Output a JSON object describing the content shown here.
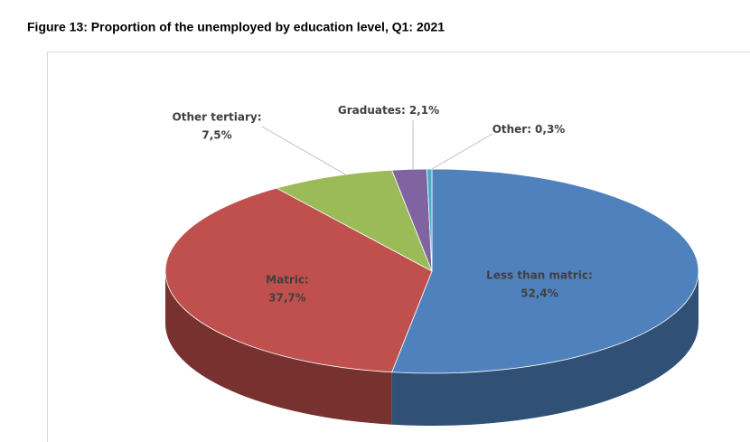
{
  "chart_data": {
    "type": "pie",
    "title": "Figure 13: Proportion of the unemployed by education level, Q1: 2021",
    "categories": [
      "Less than matric:",
      "Matric:",
      "Other tertiary:",
      "Graduates:",
      "Other:"
    ],
    "values": [
      52.4,
      37.7,
      7.5,
      2.1,
      0.3
    ],
    "value_labels": [
      "52,4%",
      "37,7%",
      "7,5%",
      "2,1%",
      "0,3%"
    ],
    "colors": [
      "#4f81bd",
      "#c0504d",
      "#9bbb59",
      "#8064a2",
      "#4bacc6"
    ]
  }
}
